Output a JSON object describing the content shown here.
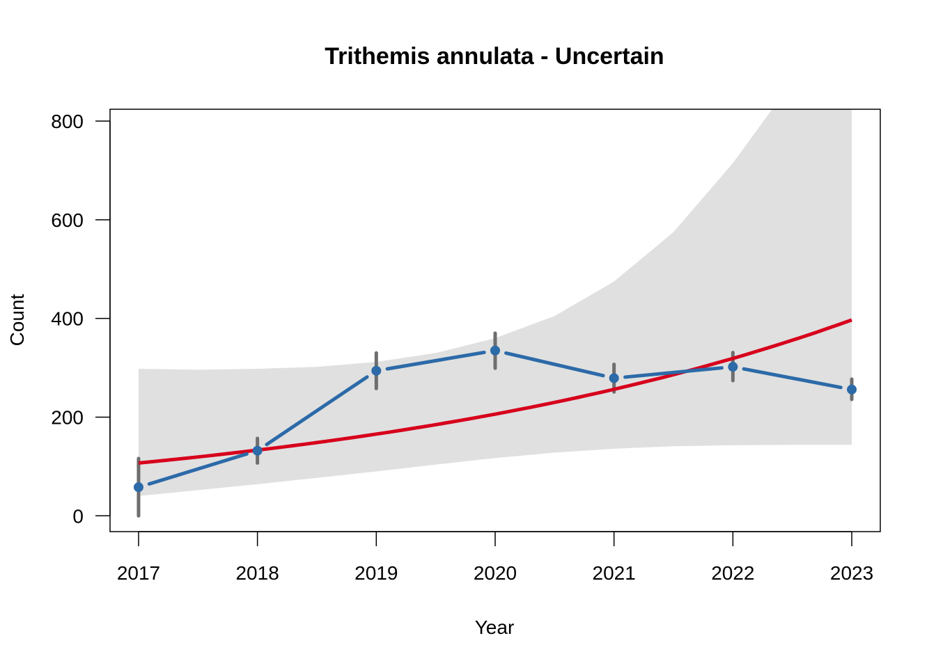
{
  "chart_data": {
    "type": "line",
    "title": "Trithemis annulata - Uncertain",
    "xlabel": "Year",
    "ylabel": "Count",
    "x": [
      2017,
      2018,
      2019,
      2020,
      2021,
      2022,
      2023
    ],
    "xlim": [
      2016.76,
      2023.24
    ],
    "ylim": [
      -32,
      824
    ],
    "y_ticks": [
      0,
      200,
      400,
      600,
      800
    ],
    "grid": false,
    "legend": "none",
    "series": [
      {
        "kind": "observed",
        "style": "dashed-line-with-points",
        "color": "#2c6aa8",
        "values": [
          58,
          132,
          294,
          335,
          279,
          302,
          256
        ],
        "error_low": [
          0,
          107,
          258,
          299,
          251,
          274,
          236
        ],
        "error_high": [
          116,
          157,
          330,
          370,
          307,
          331,
          277
        ],
        "error_color": "#6e6e6e"
      },
      {
        "kind": "fitted-trend",
        "style": "solid-line",
        "color": "#d7001c",
        "x": [
          2017,
          2018,
          2019,
          2020,
          2021,
          2022,
          2023
        ],
        "values": [
          107,
          133,
          165,
          206,
          256,
          319,
          397
        ]
      },
      {
        "kind": "confidence-band",
        "style": "area",
        "color": "#e0e0e0",
        "x": [
          2017,
          2017.5,
          2018,
          2018.5,
          2019,
          2019.5,
          2020,
          2020.5,
          2021,
          2021.5,
          2022,
          2022.5,
          2023
        ],
        "lower": [
          40,
          52,
          64,
          77,
          90,
          104,
          117,
          128,
          136,
          141,
          143,
          144,
          144
        ],
        "upper": [
          298,
          296,
          298,
          302,
          312,
          330,
          360,
          405,
          475,
          575,
          715,
          880,
          1100
        ]
      }
    ]
  }
}
